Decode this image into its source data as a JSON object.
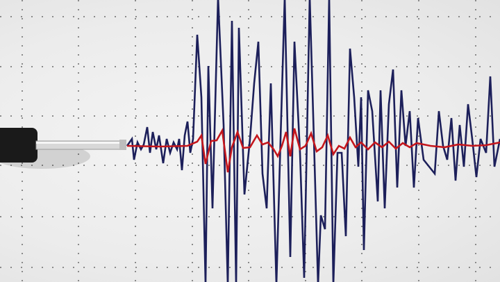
{
  "scene": "seismograph",
  "colors": {
    "paper": "#eeeeee",
    "grid": "#8a8a8a",
    "main_trace": "#1c1f5a",
    "secondary_trace": "#c4161c",
    "stylus": "#1a1a1a"
  },
  "icons": [
    "seismograph-stylus-icon"
  ]
}
